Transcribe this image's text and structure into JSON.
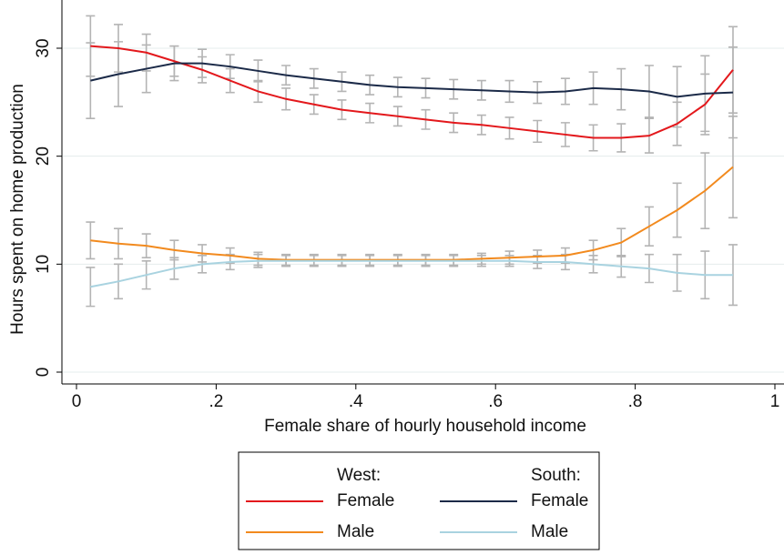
{
  "chart_data": {
    "type": "line",
    "xlabel": "Female share of hourly household income",
    "ylabel": "Hours spent on home production",
    "x": [
      0.02,
      0.06,
      0.1,
      0.14,
      0.18,
      0.22,
      0.26,
      0.3,
      0.34,
      0.38,
      0.42,
      0.46,
      0.5,
      0.54,
      0.58,
      0.62,
      0.66,
      0.7,
      0.74,
      0.78,
      0.82,
      0.86,
      0.9,
      0.94
    ],
    "xlim": [
      0,
      1
    ],
    "xticks": [
      0,
      {
        "value": 0.2,
        "label": ".2"
      },
      {
        "value": 0.4,
        "label": ".4"
      },
      {
        "value": 0.6,
        "label": ".6"
      },
      {
        "value": 0.8,
        "label": ".8"
      },
      1
    ],
    "ylim": [
      0,
      30.7
    ],
    "yticks": [
      0,
      10,
      20,
      30
    ],
    "grid": true,
    "error_color": "#b4b4b4",
    "legend_titles": [
      "West:",
      "South:"
    ],
    "series": [
      {
        "name": "Female",
        "color": "#e3181c",
        "values": [
          30.2,
          30.0,
          29.6,
          28.8,
          28.0,
          27.0,
          26.0,
          25.3,
          24.8,
          24.3,
          24.0,
          23.7,
          23.4,
          23.1,
          22.9,
          22.6,
          22.3,
          22.0,
          21.7,
          21.7,
          21.9,
          23.0,
          24.8,
          28.0
        ],
        "errors": [
          2.8,
          2.2,
          1.7,
          1.4,
          1.2,
          1.1,
          1.0,
          1.0,
          0.9,
          0.9,
          0.9,
          0.9,
          0.9,
          0.9,
          0.9,
          1.0,
          1.0,
          1.1,
          1.2,
          1.3,
          1.6,
          2.0,
          2.8,
          4.0
        ]
      },
      {
        "name": "Male",
        "color": "#f28a1e",
        "values": [
          12.2,
          11.9,
          11.7,
          11.3,
          11.0,
          10.8,
          10.5,
          10.4,
          10.4,
          10.4,
          10.4,
          10.4,
          10.4,
          10.4,
          10.5,
          10.6,
          10.7,
          10.8,
          11.3,
          12.0,
          13.5,
          15.0,
          16.8,
          19.0
        ],
        "errors": [
          1.7,
          1.4,
          1.1,
          0.9,
          0.8,
          0.7,
          0.6,
          0.5,
          0.5,
          0.5,
          0.5,
          0.5,
          0.5,
          0.5,
          0.5,
          0.6,
          0.6,
          0.7,
          0.9,
          1.3,
          1.8,
          2.5,
          3.5,
          4.7
        ]
      },
      {
        "name": "Female",
        "color": "#1b2a48",
        "values": [
          27.0,
          27.6,
          28.1,
          28.6,
          28.6,
          28.3,
          27.9,
          27.5,
          27.2,
          26.9,
          26.6,
          26.4,
          26.3,
          26.2,
          26.1,
          26.0,
          25.9,
          26.0,
          26.3,
          26.2,
          26.0,
          25.5,
          25.8,
          25.9
        ],
        "errors": [
          3.5,
          3.0,
          2.2,
          1.6,
          1.3,
          1.1,
          1.0,
          0.9,
          0.9,
          0.9,
          0.9,
          0.9,
          0.9,
          0.9,
          0.9,
          1.0,
          1.0,
          1.2,
          1.5,
          1.9,
          2.4,
          2.8,
          3.5,
          4.2
        ]
      },
      {
        "name": "Male",
        "color": "#a9d3e0",
        "values": [
          7.9,
          8.4,
          9.0,
          9.6,
          10.0,
          10.2,
          10.3,
          10.3,
          10.3,
          10.3,
          10.3,
          10.3,
          10.3,
          10.3,
          10.3,
          10.3,
          10.2,
          10.2,
          10.0,
          9.8,
          9.6,
          9.2,
          9.0,
          9.0
        ],
        "errors": [
          1.8,
          1.6,
          1.3,
          1.0,
          0.8,
          0.7,
          0.6,
          0.5,
          0.5,
          0.5,
          0.5,
          0.5,
          0.5,
          0.5,
          0.5,
          0.5,
          0.6,
          0.7,
          0.8,
          1.0,
          1.3,
          1.7,
          2.2,
          2.8
        ]
      }
    ]
  }
}
